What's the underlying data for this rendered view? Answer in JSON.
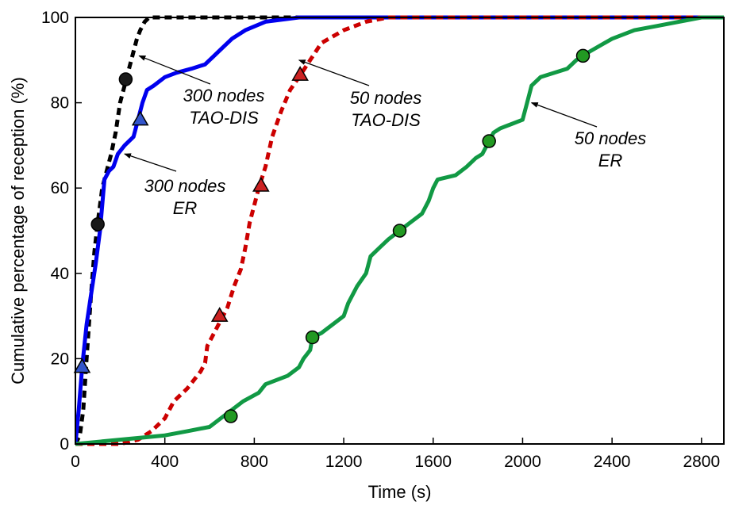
{
  "chart_data": {
    "type": "line",
    "xlabel": "Time (s)",
    "ylabel": "Cumulative percentage of reception (%)",
    "xlim": [
      0,
      2900
    ],
    "ylim": [
      0,
      100
    ],
    "xticks": [
      0,
      400,
      800,
      1200,
      1600,
      2000,
      2400,
      2800
    ],
    "yticks": [
      0,
      20,
      40,
      60,
      80,
      100
    ],
    "grid": false,
    "legend": "none",
    "series": [
      {
        "style": "dashed",
        "color": "#000000",
        "marker": "circle",
        "marker_fill": "#1a1a1a",
        "points": [
          [
            0,
            0
          ],
          [
            20,
            2
          ],
          [
            35,
            8
          ],
          [
            50,
            20
          ],
          [
            70,
            35
          ],
          [
            85,
            45
          ],
          [
            100,
            52
          ],
          [
            120,
            60
          ],
          [
            140,
            64
          ],
          [
            160,
            68
          ],
          [
            180,
            73
          ],
          [
            200,
            80
          ],
          [
            230,
            86
          ],
          [
            250,
            90
          ],
          [
            275,
            95
          ],
          [
            290,
            97
          ],
          [
            310,
            99
          ],
          [
            330,
            100
          ],
          [
            2900,
            100
          ]
        ],
        "markers": [
          [
            100,
            51.5
          ],
          [
            225,
            85.5
          ]
        ]
      },
      {
        "style": "solid",
        "color": "#0000ee",
        "marker": "triangle",
        "marker_fill": "#3355cc",
        "points": [
          [
            0,
            0
          ],
          [
            15,
            8
          ],
          [
            30,
            18
          ],
          [
            50,
            28
          ],
          [
            70,
            35
          ],
          [
            90,
            42
          ],
          [
            110,
            50
          ],
          [
            130,
            62
          ],
          [
            150,
            64
          ],
          [
            170,
            65
          ],
          [
            190,
            68
          ],
          [
            220,
            70
          ],
          [
            260,
            72
          ],
          [
            280,
            76
          ],
          [
            300,
            80
          ],
          [
            320,
            83
          ],
          [
            350,
            84
          ],
          [
            400,
            86
          ],
          [
            450,
            87
          ],
          [
            520,
            88
          ],
          [
            580,
            89
          ],
          [
            620,
            91
          ],
          [
            660,
            93
          ],
          [
            700,
            95
          ],
          [
            760,
            97
          ],
          [
            850,
            99
          ],
          [
            1000,
            100
          ],
          [
            2900,
            100
          ]
        ],
        "markers": [
          [
            30,
            18
          ],
          [
            290,
            76
          ]
        ]
      },
      {
        "style": "dashed",
        "color": "#cc0000",
        "marker": "triangle",
        "marker_fill": "#cc2222",
        "points": [
          [
            0,
            0
          ],
          [
            200,
            0
          ],
          [
            280,
            1
          ],
          [
            340,
            3
          ],
          [
            400,
            6
          ],
          [
            440,
            10
          ],
          [
            500,
            13
          ],
          [
            560,
            17
          ],
          [
            580,
            19
          ],
          [
            590,
            23
          ],
          [
            610,
            25
          ],
          [
            640,
            28
          ],
          [
            680,
            32
          ],
          [
            710,
            37
          ],
          [
            740,
            41
          ],
          [
            760,
            46
          ],
          [
            780,
            52
          ],
          [
            800,
            56
          ],
          [
            820,
            60
          ],
          [
            850,
            65
          ],
          [
            880,
            72
          ],
          [
            920,
            78
          ],
          [
            960,
            83
          ],
          [
            1000,
            86
          ],
          [
            1050,
            90
          ],
          [
            1100,
            94
          ],
          [
            1200,
            97
          ],
          [
            1300,
            99
          ],
          [
            1400,
            100
          ],
          [
            2900,
            100
          ]
        ],
        "markers": [
          [
            645,
            30
          ],
          [
            830,
            60.5
          ],
          [
            1005,
            86.5
          ]
        ]
      },
      {
        "style": "solid",
        "color": "#119944",
        "marker": "circle",
        "marker_fill": "#229922",
        "points": [
          [
            0,
            0
          ],
          [
            400,
            2
          ],
          [
            500,
            3
          ],
          [
            600,
            4
          ],
          [
            650,
            6
          ],
          [
            700,
            8
          ],
          [
            750,
            10
          ],
          [
            820,
            12
          ],
          [
            850,
            14
          ],
          [
            950,
            16
          ],
          [
            1000,
            18
          ],
          [
            1020,
            20
          ],
          [
            1050,
            22
          ],
          [
            1060,
            25
          ],
          [
            1100,
            26
          ],
          [
            1150,
            28
          ],
          [
            1200,
            30
          ],
          [
            1220,
            33
          ],
          [
            1260,
            37
          ],
          [
            1300,
            40
          ],
          [
            1320,
            44
          ],
          [
            1360,
            46
          ],
          [
            1400,
            48
          ],
          [
            1450,
            50
          ],
          [
            1500,
            52
          ],
          [
            1550,
            54
          ],
          [
            1580,
            57
          ],
          [
            1600,
            60
          ],
          [
            1620,
            62
          ],
          [
            1700,
            63
          ],
          [
            1750,
            65
          ],
          [
            1790,
            67
          ],
          [
            1820,
            68
          ],
          [
            1850,
            71
          ],
          [
            1870,
            73
          ],
          [
            1900,
            74
          ],
          [
            1950,
            75
          ],
          [
            2000,
            76
          ],
          [
            2020,
            80
          ],
          [
            2040,
            84
          ],
          [
            2080,
            86
          ],
          [
            2200,
            88
          ],
          [
            2240,
            90
          ],
          [
            2270,
            91
          ],
          [
            2300,
            92
          ],
          [
            2400,
            95
          ],
          [
            2500,
            97
          ],
          [
            2600,
            98
          ],
          [
            2800,
            100
          ],
          [
            2900,
            100
          ]
        ],
        "markers": [
          [
            695,
            6.5
          ],
          [
            1060,
            25
          ],
          [
            1450,
            50
          ],
          [
            1850,
            71
          ],
          [
            2270,
            91
          ]
        ]
      }
    ],
    "annotations": [
      {
        "lines": [
          "300 nodes",
          "TAO-DIS"
        ],
        "target": [
          285,
          91
        ]
      },
      {
        "lines": [
          "300 nodes",
          "ER"
        ],
        "target": [
          220,
          68
        ]
      },
      {
        "lines": [
          "50 nodes",
          "TAO-DIS"
        ],
        "target": [
          1000,
          90
        ]
      },
      {
        "lines": [
          "50 nodes",
          "ER"
        ],
        "target": [
          2040,
          80
        ]
      }
    ]
  }
}
